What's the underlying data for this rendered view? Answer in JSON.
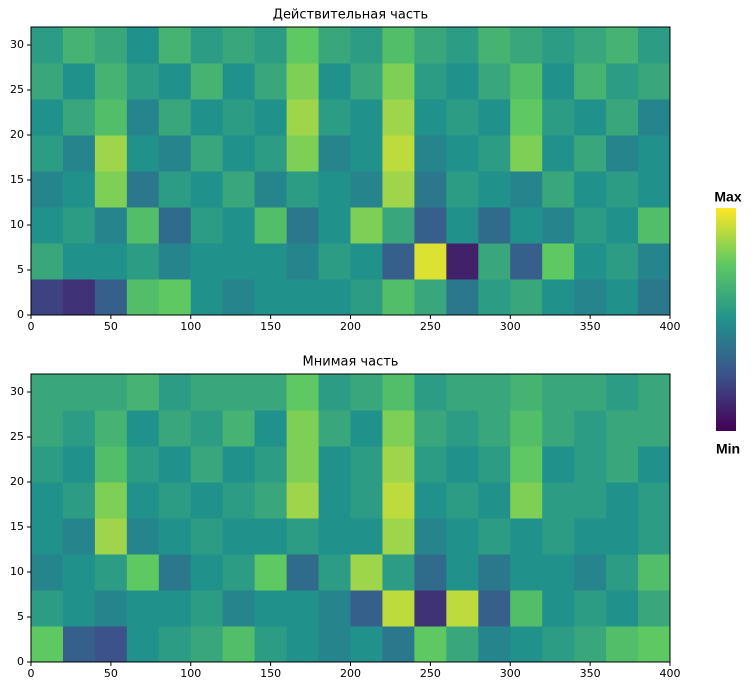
{
  "chart_data": [
    {
      "type": "heatmap",
      "title": "Действительная часть",
      "xlim": [
        0,
        400
      ],
      "ylim": [
        0,
        32
      ],
      "xticks": [
        0,
        50,
        100,
        150,
        200,
        250,
        300,
        350,
        400
      ],
      "yticks": [
        0,
        5,
        10,
        15,
        20,
        25,
        30
      ],
      "colormap": "viridis",
      "z": [
        [
          0.2,
          0.15,
          0.3,
          0.7,
          0.75,
          0.5,
          0.45,
          0.5,
          0.5,
          0.5,
          0.55,
          0.7,
          0.6,
          0.4,
          0.55,
          0.6,
          0.5,
          0.45,
          0.5,
          0.4
        ],
        [
          0.6,
          0.5,
          0.5,
          0.55,
          0.45,
          0.5,
          0.5,
          0.5,
          0.45,
          0.55,
          0.5,
          0.3,
          0.95,
          0.1,
          0.6,
          0.3,
          0.75,
          0.5,
          0.55,
          0.45
        ],
        [
          0.5,
          0.55,
          0.45,
          0.7,
          0.35,
          0.55,
          0.5,
          0.7,
          0.4,
          0.5,
          0.8,
          0.6,
          0.3,
          0.5,
          0.35,
          0.5,
          0.45,
          0.55,
          0.5,
          0.7
        ],
        [
          0.45,
          0.5,
          0.8,
          0.4,
          0.55,
          0.5,
          0.6,
          0.45,
          0.55,
          0.5,
          0.45,
          0.85,
          0.4,
          0.55,
          0.5,
          0.45,
          0.6,
          0.5,
          0.55,
          0.5
        ],
        [
          0.55,
          0.45,
          0.85,
          0.5,
          0.45,
          0.6,
          0.5,
          0.55,
          0.8,
          0.45,
          0.5,
          0.9,
          0.45,
          0.5,
          0.55,
          0.8,
          0.5,
          0.6,
          0.45,
          0.5
        ],
        [
          0.5,
          0.6,
          0.7,
          0.45,
          0.6,
          0.5,
          0.55,
          0.5,
          0.85,
          0.55,
          0.5,
          0.85,
          0.5,
          0.55,
          0.5,
          0.75,
          0.55,
          0.5,
          0.6,
          0.45
        ],
        [
          0.6,
          0.5,
          0.65,
          0.55,
          0.5,
          0.65,
          0.5,
          0.6,
          0.8,
          0.5,
          0.6,
          0.8,
          0.55,
          0.5,
          0.6,
          0.7,
          0.5,
          0.65,
          0.55,
          0.6
        ],
        [
          0.55,
          0.65,
          0.6,
          0.5,
          0.65,
          0.55,
          0.6,
          0.55,
          0.75,
          0.6,
          0.55,
          0.7,
          0.6,
          0.55,
          0.65,
          0.6,
          0.55,
          0.6,
          0.65,
          0.55
        ]
      ]
    },
    {
      "type": "heatmap",
      "title": "Мнимая часть",
      "xlim": [
        0,
        400
      ],
      "ylim": [
        0,
        32
      ],
      "xticks": [
        0,
        50,
        100,
        150,
        200,
        250,
        300,
        350,
        400
      ],
      "yticks": [
        0,
        5,
        10,
        15,
        20,
        25,
        30
      ],
      "colormap": "viridis",
      "z": [
        [
          0.75,
          0.3,
          0.25,
          0.5,
          0.55,
          0.6,
          0.7,
          0.55,
          0.5,
          0.45,
          0.5,
          0.4,
          0.75,
          0.6,
          0.45,
          0.5,
          0.55,
          0.6,
          0.7,
          0.75
        ],
        [
          0.55,
          0.5,
          0.45,
          0.5,
          0.5,
          0.55,
          0.45,
          0.5,
          0.5,
          0.45,
          0.3,
          0.9,
          0.15,
          0.9,
          0.3,
          0.7,
          0.5,
          0.55,
          0.5,
          0.6
        ],
        [
          0.45,
          0.5,
          0.55,
          0.75,
          0.4,
          0.5,
          0.55,
          0.75,
          0.35,
          0.55,
          0.85,
          0.55,
          0.35,
          0.5,
          0.4,
          0.5,
          0.5,
          0.45,
          0.55,
          0.7
        ],
        [
          0.5,
          0.45,
          0.85,
          0.45,
          0.5,
          0.55,
          0.5,
          0.5,
          0.55,
          0.5,
          0.5,
          0.85,
          0.45,
          0.5,
          0.55,
          0.5,
          0.55,
          0.5,
          0.5,
          0.55
        ],
        [
          0.5,
          0.55,
          0.8,
          0.5,
          0.55,
          0.5,
          0.55,
          0.6,
          0.85,
          0.5,
          0.55,
          0.9,
          0.5,
          0.55,
          0.5,
          0.8,
          0.55,
          0.55,
          0.5,
          0.55
        ],
        [
          0.55,
          0.5,
          0.7,
          0.55,
          0.5,
          0.6,
          0.5,
          0.55,
          0.8,
          0.5,
          0.55,
          0.85,
          0.55,
          0.5,
          0.55,
          0.75,
          0.5,
          0.55,
          0.6,
          0.5
        ],
        [
          0.6,
          0.55,
          0.65,
          0.5,
          0.6,
          0.55,
          0.65,
          0.5,
          0.8,
          0.6,
          0.5,
          0.8,
          0.6,
          0.55,
          0.6,
          0.7,
          0.6,
          0.55,
          0.6,
          0.6
        ],
        [
          0.6,
          0.6,
          0.6,
          0.65,
          0.55,
          0.6,
          0.6,
          0.6,
          0.75,
          0.55,
          0.6,
          0.7,
          0.55,
          0.6,
          0.6,
          0.65,
          0.6,
          0.6,
          0.55,
          0.6
        ]
      ]
    }
  ],
  "colorbar": {
    "max_label": "Max",
    "min_label": "Min"
  }
}
